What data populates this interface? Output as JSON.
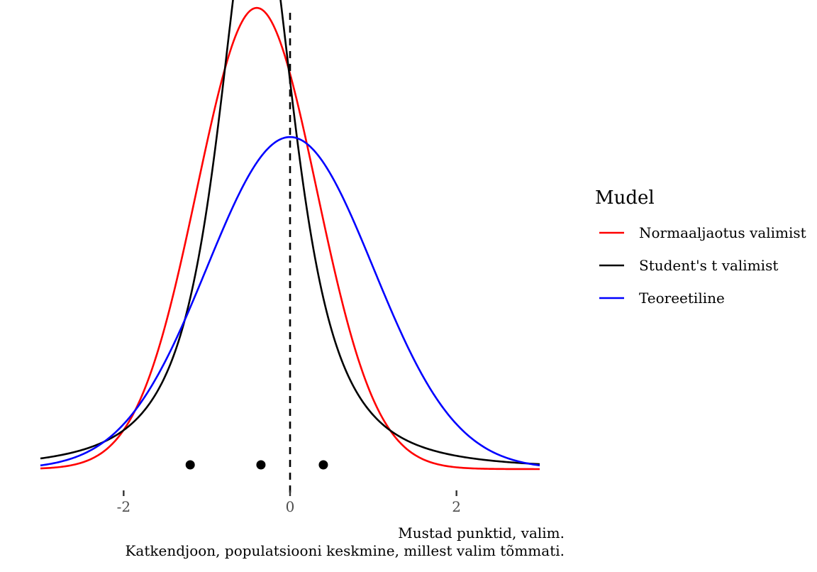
{
  "chart_data": {
    "type": "line",
    "title": "",
    "xlabel": "",
    "ylabel": "",
    "xlim": [
      -3,
      3
    ],
    "ylim": [
      0,
      0.48
    ],
    "x_ticks": [
      -2,
      0,
      2
    ],
    "x_tick_labels": [
      "-2",
      "0",
      "2"
    ],
    "grid": false,
    "legend_position": "right",
    "legend_title": "Mudel",
    "series": [
      {
        "name": "Normaaljaotus valimist",
        "kind": "normal",
        "mean": -0.4,
        "sd": 0.72,
        "color": "#ff0000"
      },
      {
        "name": "Student's t valimist",
        "kind": "t",
        "mean": -0.4,
        "scale": 0.5,
        "df": 2,
        "color": "#000000"
      },
      {
        "name": "Teoreetiline",
        "kind": "normal",
        "mean": 0,
        "sd": 1,
        "color": "#0000ff"
      }
    ],
    "sample_points": {
      "x": [
        -1.2,
        -0.35,
        0.4
      ],
      "y": 0.005,
      "color": "#000000"
    },
    "vline": {
      "x": 0,
      "style": "dashed",
      "color": "#000000"
    },
    "caption": [
      "Mustad punktid, valim.",
      "Katkendjoon, populatsiooni keskmine, millest valim tõmmati."
    ]
  }
}
